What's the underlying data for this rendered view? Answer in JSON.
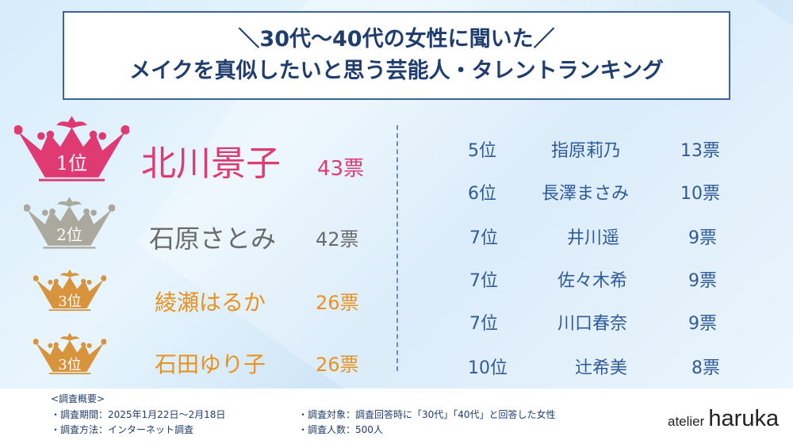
{
  "title": {
    "line1": "＼30代〜40代の女性に聞いた／",
    "line2": "メイクを真似したいと思う芸能人・タレントランキング"
  },
  "top": [
    {
      "rank": "1位",
      "name": "北川景子",
      "votes": "43票",
      "color": "#e03a73"
    },
    {
      "rank": "2位",
      "name": "石原さとみ",
      "votes": "42票",
      "color": "#aba99e"
    },
    {
      "rank": "3位",
      "name": "綾瀬はるか",
      "votes": "26票",
      "color": "#d8943c"
    },
    {
      "rank": "3位",
      "name": "石田ゆり子",
      "votes": "26票",
      "color": "#d8943c"
    }
  ],
  "others": [
    {
      "rank": "5位",
      "name": "指原莉乃",
      "votes": "13票"
    },
    {
      "rank": "6位",
      "name": "長澤まさみ",
      "votes": "10票"
    },
    {
      "rank": "7位",
      "name": "井川遥",
      "votes": "9票"
    },
    {
      "rank": "7位",
      "name": "佐々木希",
      "votes": "9票"
    },
    {
      "rank": "7位",
      "name": "川口春奈",
      "votes": "9票"
    },
    {
      "rank": "10位",
      "name": "辻希美",
      "votes": "8票"
    }
  ],
  "footer": {
    "heading": "<調査概要>",
    "period": "・調査期間：2025年1月22日〜2月18日",
    "method": "・調査方法：インターネット調査",
    "target": "・調査対象：調査回答時に「30代」「40代」と回答した女性",
    "count": "・調査人数：500人"
  },
  "logo": {
    "a": "atelier",
    "b": "haruka"
  }
}
